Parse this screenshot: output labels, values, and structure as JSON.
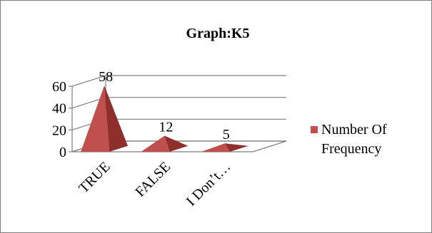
{
  "chart_data": {
    "type": "bar",
    "shape": "3d-pyramid",
    "title": "Graph:K5",
    "categories": [
      "TRUE",
      "FALSE",
      "I Don’t…"
    ],
    "series": [
      {
        "name": "Number Of Frequency",
        "values": [
          58,
          12,
          5
        ]
      }
    ],
    "data_labels": [
      "58",
      "12",
      "5"
    ],
    "y_ticks": [
      "0",
      "20",
      "40",
      "60"
    ],
    "ylim": [
      0,
      60
    ],
    "grid": true,
    "legend": {
      "position": "right",
      "lines": [
        "Number Of",
        "Frequency"
      ]
    },
    "colors": {
      "series": "#c0504d",
      "series_dark": "#8e2f2c",
      "grid": "#7f7f7f",
      "border": "#7f7f7f"
    }
  }
}
